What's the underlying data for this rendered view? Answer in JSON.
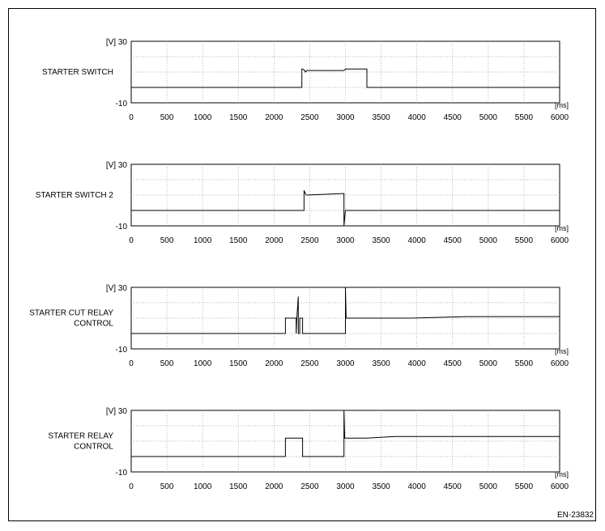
{
  "figure_id": "EN-23832",
  "chart_data": [
    {
      "type": "line",
      "signal": "STARTER SWITCH",
      "label_lines": [
        "STARTER SWITCH"
      ],
      "y_top_label": "[V] 30",
      "y_bottom_label": "-10",
      "x_unit": "[ms]",
      "xlim": [
        0,
        6000
      ],
      "ylim": [
        -10,
        30
      ],
      "x_ticks": [
        0,
        500,
        1000,
        1500,
        2000,
        2500,
        3000,
        3500,
        4000,
        4500,
        5000,
        5500,
        6000
      ],
      "grid": true,
      "series": [
        {
          "x": [
            0,
            2390,
            2390,
            2400,
            2430,
            2440,
            2460,
            2980,
            3000,
            3300,
            3300,
            6000
          ],
          "y": [
            0,
            0,
            12,
            12,
            11,
            10,
            11,
            11,
            12,
            12,
            0,
            0
          ]
        }
      ]
    },
    {
      "type": "line",
      "signal": "STARTER SWITCH 2",
      "label_lines": [
        "STARTER SWITCH 2"
      ],
      "y_top_label": "[V] 30",
      "y_bottom_label": "-10",
      "x_unit": "[ms]",
      "xlim": [
        0,
        6000
      ],
      "ylim": [
        -10,
        30
      ],
      "x_ticks": [
        0,
        500,
        1000,
        1500,
        2000,
        2500,
        3000,
        3500,
        4000,
        4500,
        5000,
        5500,
        6000
      ],
      "grid": true,
      "series": [
        {
          "x": [
            0,
            2420,
            2420,
            2430,
            2450,
            2960,
            2980,
            2980,
            2990,
            3000,
            3000,
            6000
          ],
          "y": [
            0,
            0,
            13,
            12,
            10,
            11,
            11,
            -10,
            -5,
            0,
            0,
            0
          ]
        }
      ]
    },
    {
      "type": "line",
      "signal": "STARTER CUT RELAY CONTROL",
      "label_lines": [
        "STARTER CUT RELAY",
        "CONTROL"
      ],
      "y_top_label": "[V] 30",
      "y_bottom_label": "-10",
      "x_unit": "[ms]",
      "xlim": [
        0,
        6000
      ],
      "ylim": [
        -10,
        30
      ],
      "x_ticks": [
        0,
        500,
        1000,
        1500,
        2000,
        2500,
        3000,
        3500,
        4000,
        4500,
        5000,
        5500,
        6000
      ],
      "grid": true,
      "series": [
        {
          "x": [
            0,
            2160,
            2160,
            2310,
            2310,
            2320,
            2340,
            2340,
            2360,
            2360,
            2400,
            2400,
            3000,
            3000,
            3010,
            3900,
            4700,
            6000
          ],
          "y": [
            0,
            0,
            10,
            10,
            0,
            10,
            24,
            0,
            0,
            10,
            10,
            0,
            0,
            30,
            10,
            10,
            11,
            11
          ]
        }
      ]
    },
    {
      "type": "line",
      "signal": "STARTER RELAY CONTROL",
      "label_lines": [
        "STARTER RELAY",
        "CONTROL"
      ],
      "y_top_label": "[V] 30",
      "y_bottom_label": "-10",
      "x_unit": "[ms]",
      "xlim": [
        0,
        6000
      ],
      "ylim": [
        -10,
        30
      ],
      "x_ticks": [
        0,
        500,
        1000,
        1500,
        2000,
        2500,
        3000,
        3500,
        4000,
        4500,
        5000,
        5500,
        6000
      ],
      "grid": true,
      "series": [
        {
          "x": [
            0,
            2160,
            2160,
            2400,
            2400,
            2980,
            2980,
            2990,
            3300,
            3700,
            6000
          ],
          "y": [
            0,
            0,
            12,
            12,
            0,
            0,
            30,
            12,
            12,
            13,
            13
          ]
        }
      ]
    }
  ]
}
